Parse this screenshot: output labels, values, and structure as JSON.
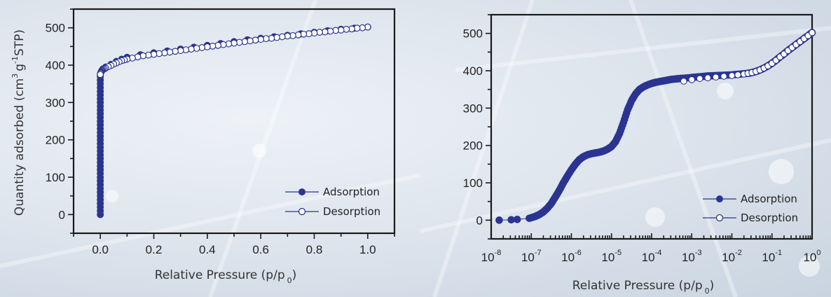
{
  "colors": {
    "series": "#2b3590",
    "marker_open_fill": "#ffffff",
    "axis": "#1a1a1a"
  },
  "chart_data": [
    {
      "type": "scatter",
      "title": "",
      "xlabel": "Relative Pressure (p/p",
      "xlabel_sub": "0",
      "xlabel_close": ")",
      "ylabel_parts": [
        "Quantity adsorbed (cm",
        "3",
        "g",
        "-1",
        "STP)"
      ],
      "xscale": "linear",
      "xlim": [
        -0.1,
        1.1
      ],
      "ylim": [
        -50,
        550
      ],
      "xticks": [
        0.0,
        0.2,
        0.4,
        0.6,
        0.8,
        1.0
      ],
      "xtick_labels": [
        "0.0",
        "0.2",
        "0.4",
        "0.6",
        "0.8",
        "1.0"
      ],
      "xminor": [
        -0.1,
        0.1,
        0.3,
        0.5,
        0.7,
        0.9,
        1.1
      ],
      "yticks": [
        0,
        100,
        200,
        300,
        400,
        500
      ],
      "ytick_labels": [
        "0",
        "100",
        "200",
        "300",
        "400",
        "500"
      ],
      "yminor": [
        -50,
        50,
        150,
        250,
        350,
        450,
        550
      ],
      "grid": false,
      "legend_position": "bottom-right",
      "series": [
        {
          "name": "Adsorption",
          "marker": "filled-circle",
          "x": [
            0,
            0,
            0,
            0,
            0,
            0,
            0,
            0,
            0,
            0,
            0,
            0,
            0,
            0,
            0,
            0,
            0,
            0,
            0,
            0,
            0,
            0,
            0,
            0,
            0,
            0,
            0,
            0,
            0,
            0,
            0,
            0,
            0,
            0,
            0,
            0,
            0,
            0,
            0,
            0.002,
            0.005,
            0.01,
            0.02,
            0.04,
            0.06,
            0.08,
            0.1,
            0.15,
            0.2,
            0.25,
            0.3,
            0.35,
            0.4,
            0.45,
            0.5,
            0.55,
            0.6,
            0.65,
            0.7,
            0.75,
            0.8,
            0.85,
            0.9,
            0.95,
            1.0
          ],
          "y": [
            0,
            10,
            20,
            30,
            40,
            50,
            60,
            70,
            80,
            90,
            100,
            110,
            120,
            130,
            140,
            150,
            160,
            170,
            180,
            190,
            200,
            210,
            220,
            230,
            240,
            250,
            260,
            270,
            280,
            290,
            300,
            310,
            320,
            330,
            340,
            350,
            360,
            370,
            375,
            380,
            385,
            390,
            395,
            402,
            410,
            416,
            421,
            428,
            433,
            438,
            443,
            448,
            453,
            458,
            463,
            468,
            472,
            476,
            480,
            484,
            488,
            492,
            496,
            499,
            502
          ]
        },
        {
          "name": "Desorption",
          "marker": "open-circle",
          "x": [
            1.0,
            0.98,
            0.96,
            0.94,
            0.92,
            0.9,
            0.88,
            0.86,
            0.84,
            0.82,
            0.8,
            0.78,
            0.76,
            0.74,
            0.72,
            0.7,
            0.68,
            0.66,
            0.64,
            0.62,
            0.6,
            0.58,
            0.56,
            0.54,
            0.52,
            0.5,
            0.48,
            0.46,
            0.44,
            0.42,
            0.4,
            0.38,
            0.36,
            0.34,
            0.32,
            0.3,
            0.28,
            0.26,
            0.24,
            0.22,
            0.2,
            0.18,
            0.16,
            0.14,
            0.12,
            0.1,
            0.09,
            0.08,
            0.07,
            0.06,
            0.05,
            0.04,
            0.03,
            0.02,
            0.015,
            0.01,
            0.007,
            0.005,
            0.003,
            0.002,
            0.001,
            0.0
          ],
          "y": [
            502,
            500,
            499,
            497,
            496,
            494,
            493,
            491,
            489,
            488,
            486,
            484,
            483,
            481,
            479,
            478,
            476,
            474,
            472,
            471,
            469,
            467,
            465,
            463,
            461,
            459,
            457,
            455,
            453,
            451,
            449,
            447,
            445,
            443,
            441,
            439,
            437,
            435,
            433,
            431,
            429,
            427,
            425,
            422,
            419,
            416,
            414,
            412,
            409,
            406,
            403,
            399,
            396,
            392,
            390,
            388,
            386,
            384,
            382,
            380,
            378,
            375
          ]
        }
      ]
    },
    {
      "type": "scatter",
      "title": "",
      "xlabel": "Relative Pressure (p/p",
      "xlabel_sub": "0",
      "xlabel_close": ")",
      "ylabel_parts": [],
      "xscale": "log",
      "xlim_exp": [
        -8,
        0
      ],
      "ylim": [
        -50,
        550
      ],
      "xticks_exp": [
        -8,
        -7,
        -6,
        -5,
        -4,
        -3,
        -2,
        -1,
        0
      ],
      "xtick_labels": [
        {
          "base": "10",
          "exp": "-8"
        },
        {
          "base": "10",
          "exp": "-7"
        },
        {
          "base": "10",
          "exp": "-6"
        },
        {
          "base": "10",
          "exp": "-5"
        },
        {
          "base": "10",
          "exp": "-4"
        },
        {
          "base": "10",
          "exp": "-3"
        },
        {
          "base": "10",
          "exp": "-2"
        },
        {
          "base": "10",
          "exp": "-1"
        },
        {
          "base": "10",
          "exp": "0"
        }
      ],
      "yticks": [
        0,
        100,
        200,
        300,
        400,
        500
      ],
      "ytick_labels": [
        "0",
        "100",
        "200",
        "300",
        "400",
        "500"
      ],
      "yminor": [
        -50,
        50,
        150,
        250,
        350,
        450,
        550
      ],
      "grid": false,
      "legend_position": "bottom-right",
      "series": [
        {
          "name": "Adsorption",
          "marker": "filled-circle",
          "log10x": [
            -7.8,
            -7.5,
            -7.35,
            -7.05,
            -6.9,
            -6.8,
            -6.7,
            -6.6,
            -6.5,
            -6.4,
            -6.3,
            -6.2,
            -6.1,
            -6.0,
            -5.9,
            -5.8,
            -5.7,
            -5.6,
            -5.5,
            -5.4,
            -5.3,
            -5.2,
            -5.1,
            -5.0,
            -4.9,
            -4.8,
            -4.7,
            -4.6,
            -4.5,
            -4.4,
            -4.3,
            -4.2,
            -4.1,
            -4.0,
            -3.9,
            -3.8,
            -3.7,
            -3.6,
            -3.5,
            -3.4,
            -3.3,
            -3.2,
            -3.0,
            -2.8,
            -2.6,
            -2.4,
            -2.2,
            -2.0,
            -1.8,
            -1.6,
            -1.5,
            -1.4,
            -1.3,
            -1.2,
            -1.1,
            -1.0,
            -0.9,
            -0.8,
            -0.7,
            -0.6,
            -0.5,
            -0.4,
            -0.3,
            -0.2,
            -0.1,
            0.0
          ],
          "y": [
            0,
            1,
            2,
            5,
            10,
            15,
            22,
            32,
            45,
            62,
            80,
            100,
            118,
            135,
            150,
            162,
            170,
            175,
            178,
            180,
            182,
            185,
            190,
            197,
            210,
            232,
            262,
            295,
            320,
            338,
            350,
            357,
            362,
            366,
            369,
            371,
            373,
            375,
            377,
            378,
            379,
            380,
            382,
            384,
            386,
            387,
            388,
            389,
            391,
            393,
            395,
            398,
            402,
            407,
            413,
            420,
            428,
            437,
            445,
            454,
            462,
            470,
            478,
            486,
            494,
            502
          ]
        },
        {
          "name": "Desorption",
          "marker": "open-circle",
          "log10x": [
            -3.2,
            -3.0,
            -2.8,
            -2.6,
            -2.4,
            -2.2,
            -2.0,
            -1.85,
            -1.7,
            -1.6,
            -1.5,
            -1.4,
            -1.3,
            -1.2,
            -1.1,
            -1.0,
            -0.9,
            -0.8,
            -0.7,
            -0.6,
            -0.5,
            -0.4,
            -0.3,
            -0.2,
            -0.1,
            0.0
          ],
          "y": [
            372,
            376,
            379,
            381,
            383,
            385,
            387,
            389,
            391,
            393,
            395,
            398,
            402,
            407,
            413,
            420,
            428,
            437,
            445,
            454,
            462,
            470,
            478,
            486,
            494,
            502
          ]
        }
      ]
    }
  ]
}
